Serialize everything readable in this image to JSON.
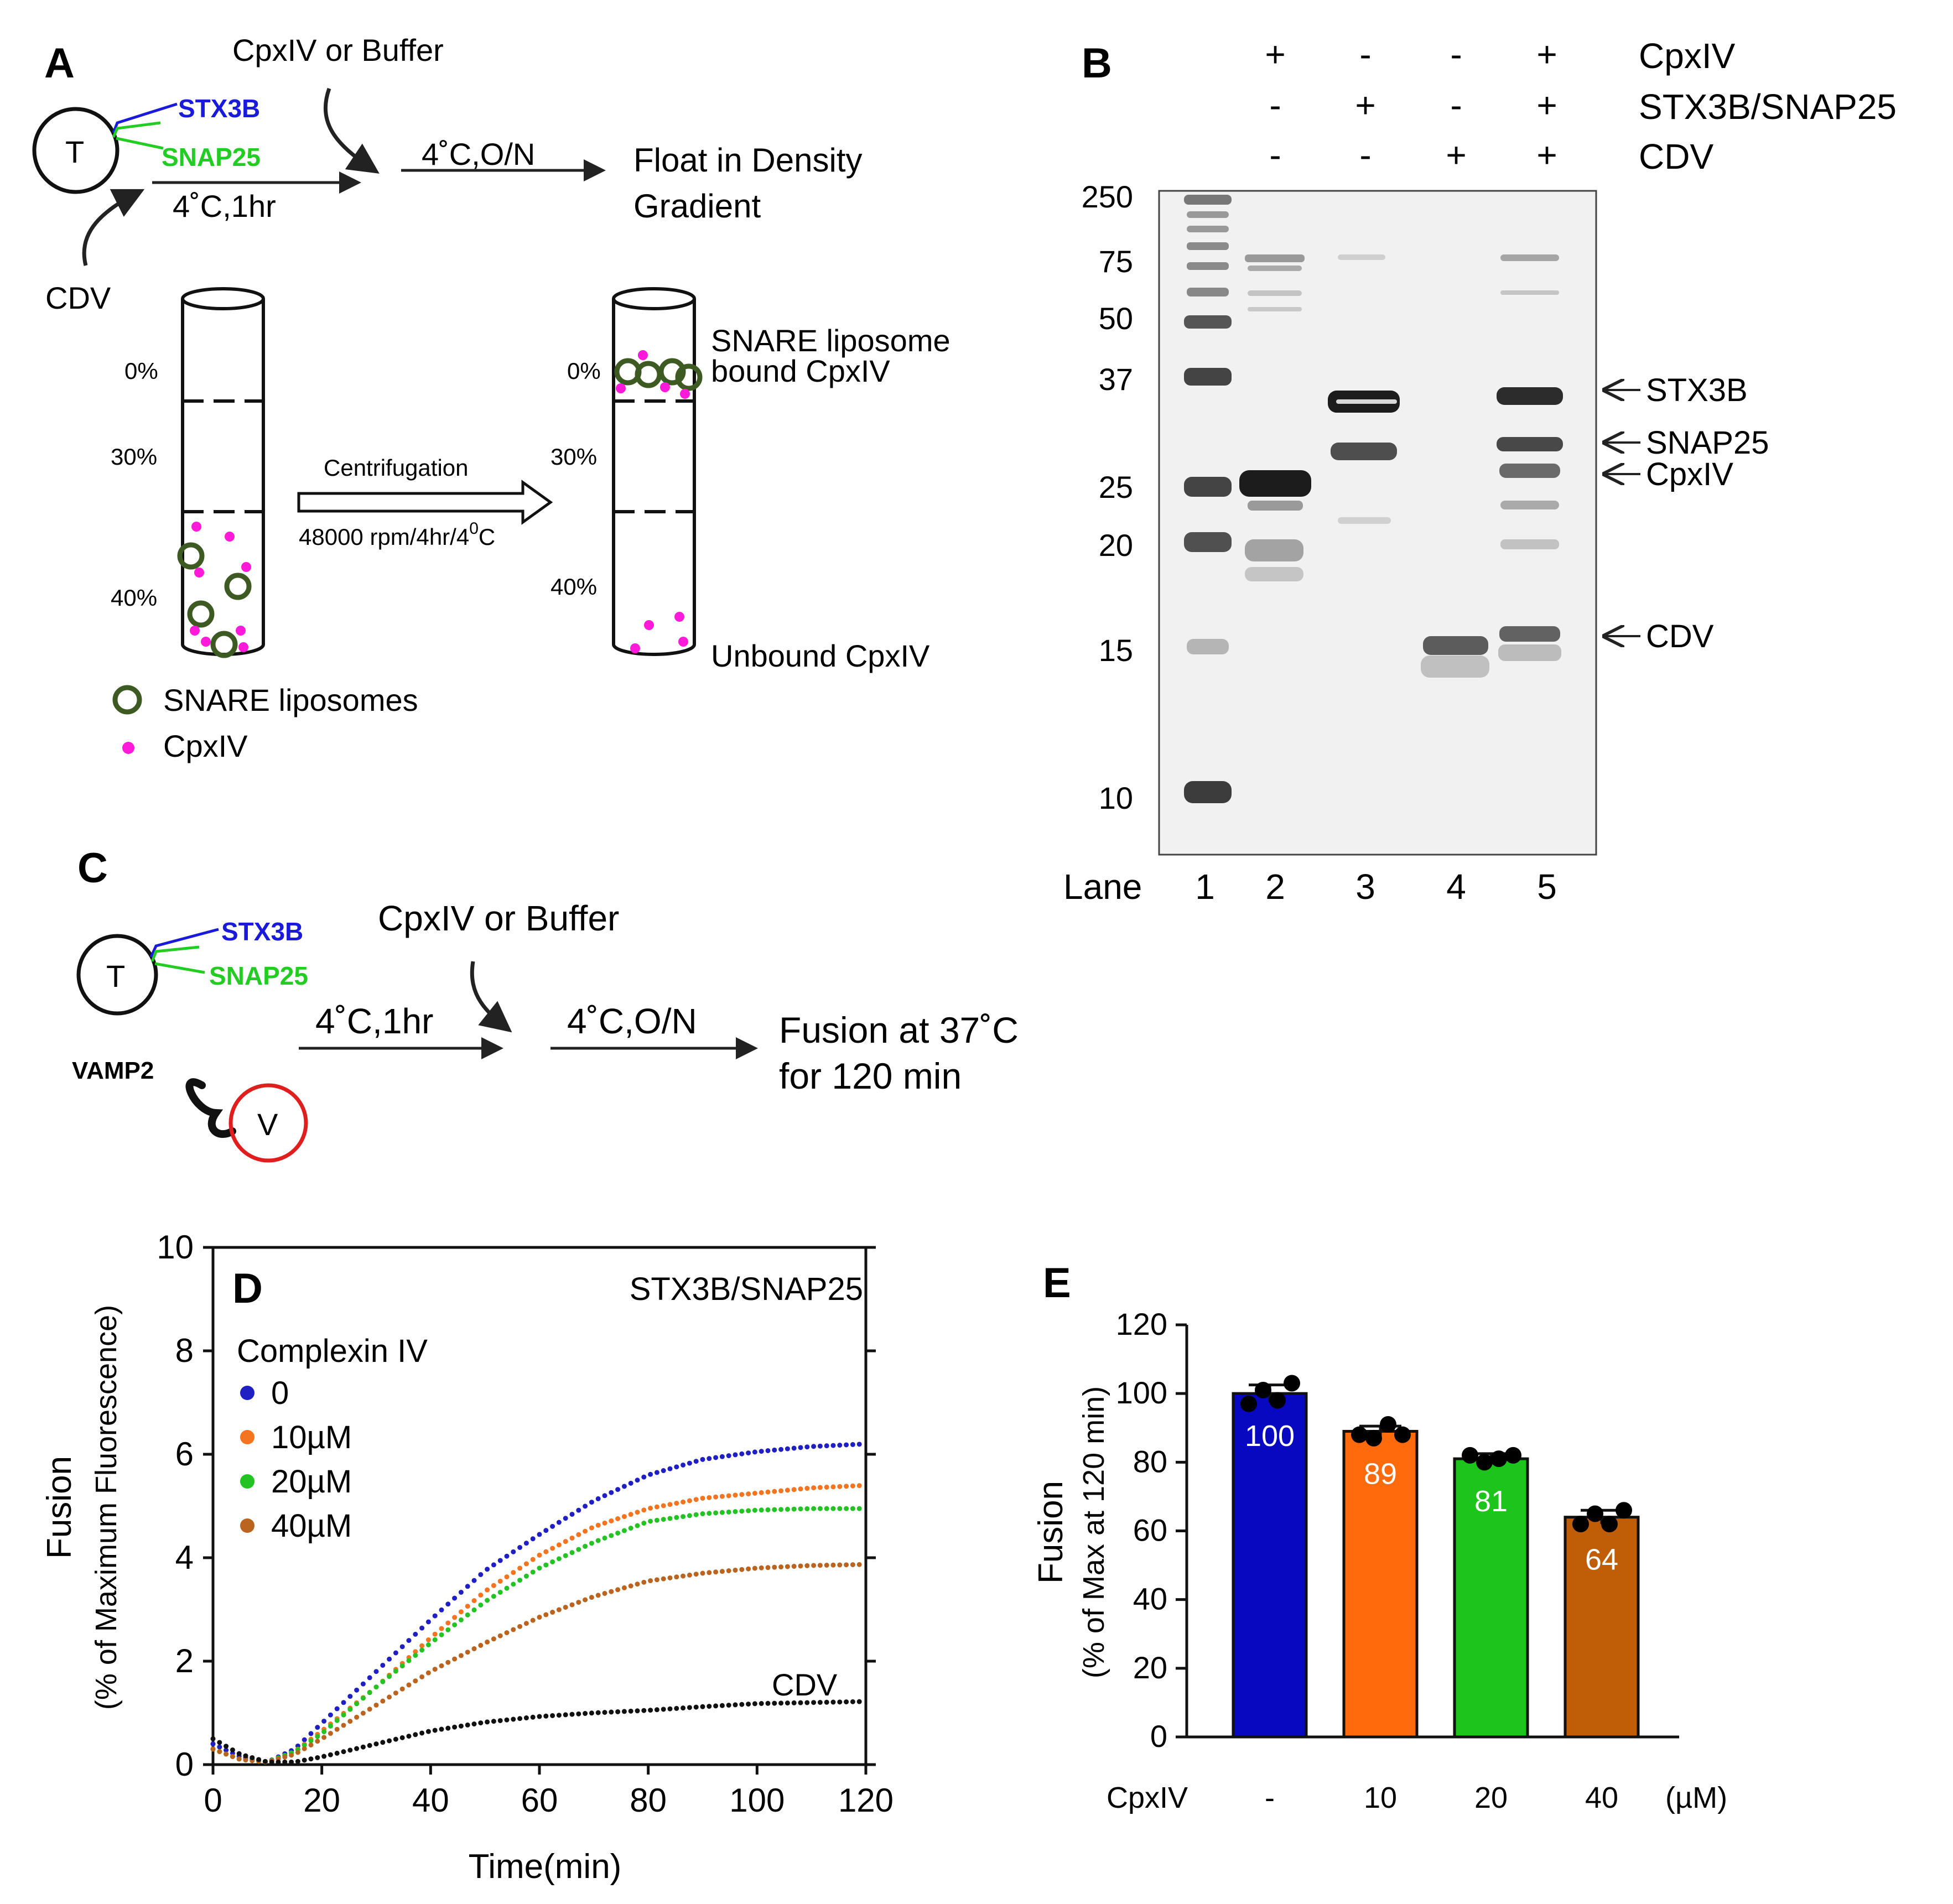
{
  "panel_a": {
    "label": "A",
    "cpxiv_or_buffer": "CpxIV or Buffer",
    "t_letter": "T",
    "stx3b": "STX3B",
    "snap25": "SNAP25",
    "cdv": "CDV",
    "step1": "4˚C,1hr",
    "step2": "4˚C,O/N",
    "float_line1": "Float in Density",
    "float_line2": "Gradient",
    "tube_left": {
      "p0": "0%",
      "p30": "30%",
      "p40": "40%"
    },
    "tube_right": {
      "p0": "0%",
      "p30": "30%",
      "p40": "40%"
    },
    "centrifugation": "Centrifugation",
    "rpm_prefix": "48000 rpm/4hr/4",
    "rpm_sup": "0",
    "rpm_suffix": "C",
    "bound_line1": "SNARE liposome",
    "bound_line2": "bound CpxIV",
    "unbound": "Unbound CpxIV",
    "legend_liposomes": "SNARE liposomes",
    "legend_cpxiv": "CpxIV",
    "colors": {
      "stx3b": "#1a1adb",
      "snap25": "#22cc22",
      "liposome": "#3d5a23",
      "cpxiv": "#ff1ad9"
    }
  },
  "panel_b": {
    "label": "B",
    "rows": [
      {
        "name": "CpxIV",
        "signs": [
          "+",
          "-",
          "-",
          "+"
        ]
      },
      {
        "name": "STX3B/SNAP25",
        "signs": [
          "-",
          "+",
          "-",
          "+"
        ]
      },
      {
        "name": "CDV",
        "signs": [
          "-",
          "-",
          "+",
          "+"
        ]
      }
    ],
    "markers": [
      "250",
      "75",
      "50",
      "37",
      "25",
      "20",
      "15",
      "10"
    ],
    "lane_title": "Lane",
    "lanes": [
      "1",
      "2",
      "3",
      "4",
      "5"
    ],
    "band_labels": [
      "STX3B",
      "SNAP25",
      "CpxIV",
      "CDV"
    ]
  },
  "panel_c": {
    "label": "C",
    "stx3b": "STX3B",
    "snap25": "SNAP25",
    "t_letter": "T",
    "vamp2": "VAMP2",
    "v_letter": "V",
    "cpxiv_or_buffer": "CpxIV or Buffer",
    "step1": "4˚C,1hr",
    "step2": "4˚C,O/N",
    "fusion_line1": "Fusion at 37˚C",
    "fusion_line2": "for 120 min",
    "colors": {
      "stx3b": "#1a1adb",
      "snap25": "#22cc22",
      "v_vesicle": "#e01e1e"
    }
  },
  "panel_d": {
    "label": "D",
    "condition": "STX3B/SNAP25",
    "legend_title": "Complexin IV",
    "cdv_label": "CDV",
    "ylabel_line1": "Fusion",
    "ylabel_line2": "(% of Maximum Fluorescence)",
    "xlabel": "Time(min)"
  },
  "panel_e": {
    "label": "E",
    "ylabel_line1": "Fusion",
    "ylabel_line2": "(% of Max at 120 min)",
    "x_title": "CpxIV",
    "unit": "(µM)"
  },
  "chart_data": [
    {
      "type": "scatter",
      "panel": "D",
      "xlabel": "Time(min)",
      "ylabel": "Fusion (% of Maximum Fluorescence)",
      "xlim": [
        0,
        120
      ],
      "ylim": [
        0,
        10
      ],
      "x_ticks": [
        "0",
        "20",
        "40",
        "60",
        "80",
        "100",
        "120"
      ],
      "y_ticks": [
        "0",
        "2",
        "4",
        "6",
        "8",
        "10"
      ],
      "legend_title": "Complexin IV",
      "legend_position": "top-left",
      "series": [
        {
          "name": "0",
          "color": "#1f1fc4",
          "x": [
            0,
            5,
            10,
            15,
            20,
            30,
            40,
            50,
            60,
            70,
            80,
            90,
            100,
            110,
            120
          ],
          "y": [
            0.4,
            0.15,
            0.05,
            0.3,
            0.8,
            1.8,
            2.8,
            3.75,
            4.45,
            5.1,
            5.6,
            5.9,
            6.05,
            6.15,
            6.2
          ]
        },
        {
          "name": "10µM",
          "color": "#f47420",
          "x": [
            0,
            5,
            10,
            15,
            20,
            30,
            40,
            50,
            60,
            70,
            80,
            90,
            100,
            110,
            120
          ],
          "y": [
            0.3,
            0.1,
            0.05,
            0.25,
            0.65,
            1.5,
            2.45,
            3.35,
            4.05,
            4.6,
            4.95,
            5.15,
            5.25,
            5.35,
            5.4
          ]
        },
        {
          "name": "20µM",
          "color": "#22c322",
          "x": [
            0,
            5,
            10,
            15,
            20,
            30,
            40,
            50,
            60,
            70,
            80,
            90,
            100,
            110,
            120
          ],
          "y": [
            0.3,
            0.1,
            0.05,
            0.25,
            0.6,
            1.5,
            2.35,
            3.15,
            3.8,
            4.3,
            4.7,
            4.85,
            4.92,
            4.95,
            4.95
          ]
        },
        {
          "name": "40µM",
          "color": "#bb6420",
          "x": [
            0,
            5,
            10,
            15,
            20,
            30,
            40,
            50,
            60,
            70,
            80,
            90,
            100,
            110,
            120
          ],
          "y": [
            0.3,
            0.1,
            0.05,
            0.2,
            0.5,
            1.15,
            1.8,
            2.35,
            2.85,
            3.25,
            3.55,
            3.7,
            3.8,
            3.85,
            3.87
          ]
        },
        {
          "name": "CDV",
          "color": "#111111",
          "x": [
            0,
            5,
            10,
            15,
            20,
            30,
            40,
            50,
            60,
            70,
            80,
            90,
            100,
            110,
            120
          ],
          "y": [
            0.5,
            0.2,
            0.05,
            0.05,
            0.15,
            0.4,
            0.65,
            0.82,
            0.93,
            1.0,
            1.05,
            1.12,
            1.18,
            1.2,
            1.22
          ]
        }
      ]
    },
    {
      "type": "bar",
      "panel": "E",
      "ylabel": "Fusion (% of Max at 120 min)",
      "x_title": "CpxIV",
      "categories": [
        "-",
        "10",
        "20",
        "40"
      ],
      "values": [
        100,
        89,
        81,
        64
      ],
      "value_labels": [
        "100",
        "89",
        "81",
        "64"
      ],
      "errors": [
        2.5,
        1.5,
        1.5,
        2.0
      ],
      "colors": [
        "#0808c0",
        "#ff6a0c",
        "#1cc41c",
        "#c05e08"
      ],
      "label_colors": [
        "#ffffff",
        "#ffffff",
        "#ffffff",
        "#ffffff"
      ],
      "points": [
        [
          97,
          101,
          98,
          103
        ],
        [
          88,
          87,
          91,
          88
        ],
        [
          82,
          80,
          81,
          82
        ],
        [
          62,
          65,
          62,
          66
        ]
      ],
      "ylim": [
        0,
        120
      ],
      "y_ticks": [
        "0",
        "20",
        "40",
        "60",
        "80",
        "100",
        "120"
      ]
    }
  ]
}
